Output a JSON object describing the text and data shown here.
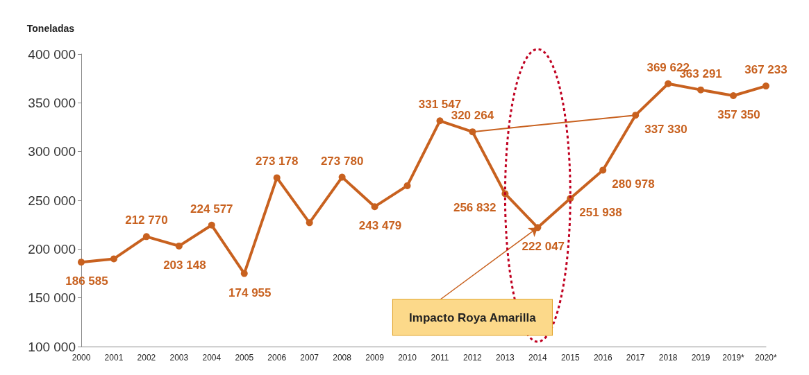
{
  "chart_data": {
    "type": "line",
    "ylabel": "Toneladas",
    "categories": [
      "2000",
      "2001",
      "2002",
      "2003",
      "2004",
      "2005",
      "2006",
      "2007",
      "2008",
      "2009",
      "2010",
      "2011",
      "2012",
      "2013",
      "2014",
      "2015",
      "2016",
      "2017",
      "2018",
      "2019",
      "2019*",
      "2020*"
    ],
    "series": [
      {
        "color": "#c8611f",
        "values": [
          186585,
          190000,
          212770,
          203148,
          224577,
          174955,
          273178,
          227000,
          273780,
          243479,
          265000,
          331547,
          320264,
          256832,
          222047,
          251938,
          280978,
          337330,
          369622,
          363291,
          357350,
          367233
        ],
        "value_labels": [
          "186 585",
          null,
          "212 770",
          "203 148",
          "224 577",
          "174 955",
          "273 178",
          null,
          "273 780",
          "243 479",
          null,
          "331 547",
          "320 264",
          "256 832",
          "222 047",
          "251 938",
          "280 978",
          "337 330",
          "369 622",
          "363 291",
          "357 350",
          "367 233"
        ]
      }
    ],
    "ylim": [
      100000,
      400000
    ],
    "yticks": [
      {
        "value": 100000,
        "label": "100 000"
      },
      {
        "value": 150000,
        "label": "150 000"
      },
      {
        "value": 200000,
        "label": "200 000"
      },
      {
        "value": 250000,
        "label": "250 000"
      },
      {
        "value": 300000,
        "label": "300 000"
      },
      {
        "value": 350000,
        "label": "350 000"
      },
      {
        "value": 400000,
        "label": "400 000"
      }
    ],
    "grid": false,
    "marker": "circle",
    "line_style": "solid",
    "annotations": [
      {
        "text": "Impacto Roya Amarilla",
        "x": "2014",
        "y": 222047
      }
    ]
  }
}
